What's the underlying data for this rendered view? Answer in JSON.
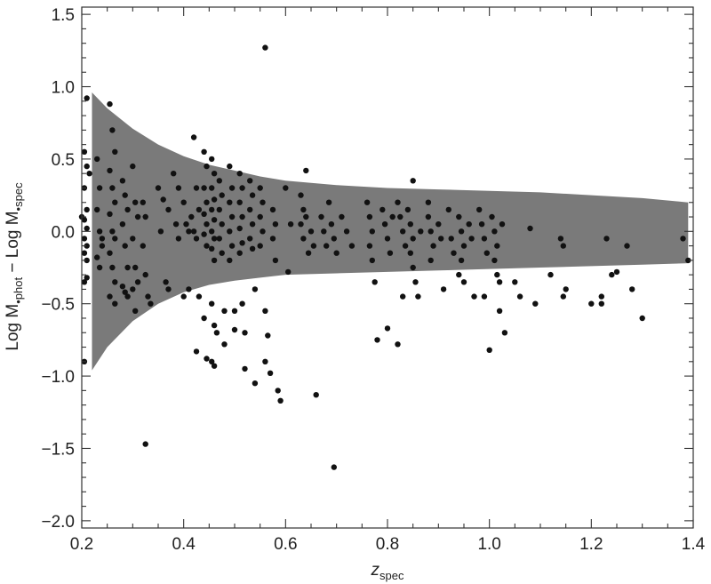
{
  "chart_data": {
    "type": "scatter",
    "title": "",
    "xlabel": {
      "main": "z",
      "sub": "spec"
    },
    "ylabel": {
      "part1": "Log M",
      "sub1": "•phot",
      "mid": " − Log M",
      "sub2": "•spec"
    },
    "xlim": [
      0.2,
      1.4
    ],
    "ylim": [
      -2.05,
      1.55
    ],
    "x_ticks": [
      0.2,
      0.4,
      0.6,
      0.8,
      1.0,
      1.2,
      1.4
    ],
    "x_tick_labels": [
      "0.2",
      "0.4",
      "0.6",
      "0.8",
      "1.0",
      "1.2",
      "1.4"
    ],
    "y_ticks": [
      -2.0,
      -1.5,
      -1.0,
      -0.5,
      0.0,
      0.5,
      1.0,
      1.5
    ],
    "y_tick_labels": [
      "−2.0",
      "−1.5",
      "−1.0",
      "−0.5",
      "0.0",
      "0.5",
      "1.0",
      "1.5"
    ],
    "grid": false,
    "legend": "none",
    "band_color": "#7a7a7a",
    "point_color": "#111111",
    "band_upper": [
      [
        0.22,
        0.96
      ],
      [
        0.25,
        0.85
      ],
      [
        0.3,
        0.71
      ],
      [
        0.35,
        0.6
      ],
      [
        0.4,
        0.52
      ],
      [
        0.45,
        0.46
      ],
      [
        0.5,
        0.42
      ],
      [
        0.55,
        0.38
      ],
      [
        0.6,
        0.35
      ],
      [
        0.7,
        0.32
      ],
      [
        0.8,
        0.3
      ],
      [
        0.9,
        0.29
      ],
      [
        1.0,
        0.28
      ],
      [
        1.1,
        0.27
      ],
      [
        1.2,
        0.25
      ],
      [
        1.3,
        0.23
      ],
      [
        1.39,
        0.2
      ]
    ],
    "band_lower": [
      [
        0.22,
        -0.96
      ],
      [
        0.25,
        -0.8
      ],
      [
        0.3,
        -0.62
      ],
      [
        0.35,
        -0.5
      ],
      [
        0.4,
        -0.42
      ],
      [
        0.45,
        -0.37
      ],
      [
        0.5,
        -0.34
      ],
      [
        0.55,
        -0.32
      ],
      [
        0.6,
        -0.3
      ],
      [
        0.7,
        -0.29
      ],
      [
        0.8,
        -0.28
      ],
      [
        0.9,
        -0.27
      ],
      [
        1.0,
        -0.26
      ],
      [
        1.1,
        -0.25
      ],
      [
        1.2,
        -0.24
      ],
      [
        1.3,
        -0.23
      ],
      [
        1.39,
        -0.22
      ]
    ],
    "points": [
      [
        0.21,
        0.92
      ],
      [
        0.205,
        0.55
      ],
      [
        0.21,
        0.45
      ],
      [
        0.215,
        0.4
      ],
      [
        0.205,
        0.3
      ],
      [
        0.21,
        0.15
      ],
      [
        0.205,
        0.08
      ],
      [
        0.21,
        0.02
      ],
      [
        0.2,
        0.1
      ],
      [
        0.205,
        -0.05
      ],
      [
        0.21,
        -0.1
      ],
      [
        0.205,
        -0.15
      ],
      [
        0.21,
        -0.2
      ],
      [
        0.205,
        -0.35
      ],
      [
        0.21,
        -0.32
      ],
      [
        0.205,
        -0.9
      ],
      [
        0.23,
        0.5
      ],
      [
        0.235,
        0.3
      ],
      [
        0.23,
        0.15
      ],
      [
        0.235,
        0.0
      ],
      [
        0.24,
        -0.05
      ],
      [
        0.23,
        -0.18
      ],
      [
        0.235,
        -0.25
      ],
      [
        0.24,
        -0.1
      ],
      [
        0.255,
        0.88
      ],
      [
        0.26,
        0.7
      ],
      [
        0.265,
        0.55
      ],
      [
        0.255,
        0.42
      ],
      [
        0.26,
        0.3
      ],
      [
        0.265,
        0.2
      ],
      [
        0.255,
        0.12
      ],
      [
        0.26,
        0.0
      ],
      [
        0.265,
        -0.05
      ],
      [
        0.255,
        -0.15
      ],
      [
        0.26,
        -0.25
      ],
      [
        0.265,
        -0.35
      ],
      [
        0.255,
        -0.45
      ],
      [
        0.265,
        -0.5
      ],
      [
        0.28,
        0.35
      ],
      [
        0.285,
        0.25
      ],
      [
        0.29,
        0.15
      ],
      [
        0.28,
        0.05
      ],
      [
        0.285,
        -0.1
      ],
      [
        0.29,
        -0.25
      ],
      [
        0.28,
        -0.38
      ],
      [
        0.285,
        -0.42
      ],
      [
        0.29,
        -0.45
      ],
      [
        0.3,
        0.45
      ],
      [
        0.305,
        0.2
      ],
      [
        0.31,
        0.1
      ],
      [
        0.3,
        -0.05
      ],
      [
        0.305,
        -0.25
      ],
      [
        0.31,
        -0.35
      ],
      [
        0.3,
        -0.4
      ],
      [
        0.305,
        -0.55
      ],
      [
        0.32,
        0.2
      ],
      [
        0.325,
        0.1
      ],
      [
        0.32,
        -0.1
      ],
      [
        0.325,
        -0.3
      ],
      [
        0.33,
        -0.45
      ],
      [
        0.335,
        -0.5
      ],
      [
        0.325,
        -1.47
      ],
      [
        0.35,
        0.3
      ],
      [
        0.36,
        0.22
      ],
      [
        0.37,
        0.15
      ],
      [
        0.355,
        0.0
      ],
      [
        0.365,
        -0.35
      ],
      [
        0.37,
        -0.4
      ],
      [
        0.38,
        0.4
      ],
      [
        0.39,
        0.3
      ],
      [
        0.385,
        0.05
      ],
      [
        0.39,
        -0.05
      ],
      [
        0.4,
        0.2
      ],
      [
        0.405,
        0.05
      ],
      [
        0.41,
        0.0
      ],
      [
        0.4,
        -0.45
      ],
      [
        0.41,
        -0.4
      ],
      [
        0.415,
        0.1
      ],
      [
        0.42,
        0.65
      ],
      [
        0.425,
        0.3
      ],
      [
        0.43,
        0.15
      ],
      [
        0.42,
        0.0
      ],
      [
        0.425,
        -0.05
      ],
      [
        0.43,
        -0.45
      ],
      [
        0.425,
        -0.83
      ],
      [
        0.44,
        0.55
      ],
      [
        0.445,
        0.45
      ],
      [
        0.44,
        0.3
      ],
      [
        0.445,
        0.2
      ],
      [
        0.44,
        0.12
      ],
      [
        0.445,
        0.05
      ],
      [
        0.44,
        -0.02
      ],
      [
        0.445,
        -0.1
      ],
      [
        0.44,
        -0.6
      ],
      [
        0.445,
        -0.88
      ],
      [
        0.455,
        0.5
      ],
      [
        0.46,
        0.4
      ],
      [
        0.455,
        0.3
      ],
      [
        0.46,
        0.22
      ],
      [
        0.455,
        0.15
      ],
      [
        0.46,
        0.08
      ],
      [
        0.455,
        0.0
      ],
      [
        0.46,
        -0.05
      ],
      [
        0.455,
        -0.12
      ],
      [
        0.46,
        -0.2
      ],
      [
        0.455,
        -0.5
      ],
      [
        0.46,
        -0.65
      ],
      [
        0.455,
        -0.9
      ],
      [
        0.46,
        -0.93
      ],
      [
        0.465,
        -0.7
      ],
      [
        0.47,
        0.35
      ],
      [
        0.475,
        0.25
      ],
      [
        0.47,
        0.15
      ],
      [
        0.475,
        0.05
      ],
      [
        0.47,
        -0.05
      ],
      [
        0.475,
        -0.15
      ],
      [
        0.48,
        -0.55
      ],
      [
        0.48,
        -0.78
      ],
      [
        0.49,
        0.45
      ],
      [
        0.495,
        0.3
      ],
      [
        0.49,
        0.2
      ],
      [
        0.495,
        0.1
      ],
      [
        0.49,
        0.0
      ],
      [
        0.495,
        -0.1
      ],
      [
        0.49,
        -0.2
      ],
      [
        0.5,
        -0.68
      ],
      [
        0.5,
        -0.55
      ],
      [
        0.51,
        0.4
      ],
      [
        0.515,
        0.3
      ],
      [
        0.51,
        0.2
      ],
      [
        0.515,
        0.1
      ],
      [
        0.51,
        0.02
      ],
      [
        0.515,
        -0.08
      ],
      [
        0.51,
        -0.15
      ],
      [
        0.515,
        -0.5
      ],
      [
        0.52,
        -0.7
      ],
      [
        0.52,
        -0.95
      ],
      [
        0.53,
        0.35
      ],
      [
        0.535,
        0.25
      ],
      [
        0.53,
        0.15
      ],
      [
        0.535,
        0.05
      ],
      [
        0.53,
        -0.05
      ],
      [
        0.535,
        -0.12
      ],
      [
        0.54,
        -0.4
      ],
      [
        0.54,
        -1.05
      ],
      [
        0.55,
        0.3
      ],
      [
        0.555,
        0.2
      ],
      [
        0.55,
        0.1
      ],
      [
        0.555,
        0.0
      ],
      [
        0.55,
        -0.1
      ],
      [
        0.56,
        -0.55
      ],
      [
        0.56,
        1.27
      ],
      [
        0.565,
        -0.72
      ],
      [
        0.56,
        -0.9
      ],
      [
        0.57,
        -0.98
      ],
      [
        0.575,
        0.15
      ],
      [
        0.58,
        0.05
      ],
      [
        0.575,
        -0.05
      ],
      [
        0.58,
        -0.2
      ],
      [
        0.585,
        -1.1
      ],
      [
        0.59,
        -1.17
      ],
      [
        0.6,
        0.3
      ],
      [
        0.61,
        0.05
      ],
      [
        0.605,
        -0.28
      ],
      [
        0.63,
        0.25
      ],
      [
        0.635,
        0.15
      ],
      [
        0.63,
        0.05
      ],
      [
        0.635,
        -0.05
      ],
      [
        0.64,
        0.42
      ],
      [
        0.64,
        0.1
      ],
      [
        0.645,
        -0.15
      ],
      [
        0.65,
        0.0
      ],
      [
        0.655,
        -0.1
      ],
      [
        0.66,
        -1.13
      ],
      [
        0.67,
        0.1
      ],
      [
        0.675,
        0.0
      ],
      [
        0.68,
        -0.1
      ],
      [
        0.685,
        0.2
      ],
      [
        0.69,
        0.05
      ],
      [
        0.695,
        -0.05
      ],
      [
        0.7,
        -0.15
      ],
      [
        0.695,
        -1.63
      ],
      [
        0.71,
        0.1
      ],
      [
        0.72,
        0.0
      ],
      [
        0.73,
        -0.1
      ],
      [
        0.76,
        0.2
      ],
      [
        0.765,
        0.1
      ],
      [
        0.77,
        0.0
      ],
      [
        0.765,
        -0.1
      ],
      [
        0.77,
        -0.2
      ],
      [
        0.775,
        -0.35
      ],
      [
        0.78,
        -0.75
      ],
      [
        0.79,
        0.15
      ],
      [
        0.795,
        0.05
      ],
      [
        0.8,
        -0.05
      ],
      [
        0.805,
        -0.15
      ],
      [
        0.8,
        -0.67
      ],
      [
        0.81,
        0.1
      ],
      [
        0.82,
        0.2
      ],
      [
        0.825,
        0.1
      ],
      [
        0.83,
        0.0
      ],
      [
        0.835,
        -0.1
      ],
      [
        0.83,
        -0.45
      ],
      [
        0.82,
        -0.78
      ],
      [
        0.84,
        0.15
      ],
      [
        0.845,
        0.05
      ],
      [
        0.85,
        -0.05
      ],
      [
        0.845,
        -0.15
      ],
      [
        0.85,
        -0.25
      ],
      [
        0.855,
        -0.35
      ],
      [
        0.85,
        0.35
      ],
      [
        0.86,
        -0.45
      ],
      [
        0.865,
        0.0
      ],
      [
        0.88,
        0.1
      ],
      [
        0.885,
        0.0
      ],
      [
        0.89,
        -0.1
      ],
      [
        0.885,
        -0.2
      ],
      [
        0.88,
        0.2
      ],
      [
        0.9,
        0.05
      ],
      [
        0.905,
        -0.05
      ],
      [
        0.91,
        -0.4
      ],
      [
        0.92,
        0.15
      ],
      [
        0.925,
        -0.05
      ],
      [
        0.93,
        -0.15
      ],
      [
        0.94,
        0.1
      ],
      [
        0.945,
        0.0
      ],
      [
        0.95,
        -0.1
      ],
      [
        0.945,
        -0.2
      ],
      [
        0.94,
        -0.3
      ],
      [
        0.95,
        -0.35
      ],
      [
        0.96,
        0.05
      ],
      [
        0.965,
        -0.05
      ],
      [
        0.97,
        -0.45
      ],
      [
        0.98,
        0.15
      ],
      [
        0.985,
        0.05
      ],
      [
        0.99,
        -0.05
      ],
      [
        0.995,
        -0.15
      ],
      [
        0.99,
        -0.45
      ],
      [
        1.0,
        -0.82
      ],
      [
        1.005,
        0.1
      ],
      [
        1.01,
        0.0
      ],
      [
        1.015,
        -0.1
      ],
      [
        1.01,
        -0.2
      ],
      [
        1.015,
        -0.3
      ],
      [
        1.02,
        -0.35
      ],
      [
        1.02,
        -0.55
      ],
      [
        1.03,
        -0.7
      ],
      [
        1.025,
        0.05
      ],
      [
        1.05,
        -0.35
      ],
      [
        1.06,
        -0.45
      ],
      [
        1.08,
        0.02
      ],
      [
        1.09,
        -0.5
      ],
      [
        1.14,
        -0.05
      ],
      [
        1.145,
        -0.1
      ],
      [
        1.15,
        -0.4
      ],
      [
        1.145,
        -0.45
      ],
      [
        1.12,
        -0.3
      ],
      [
        1.2,
        -0.5
      ],
      [
        1.22,
        -0.45
      ],
      [
        1.23,
        -0.05
      ],
      [
        1.24,
        -0.3
      ],
      [
        1.22,
        -0.5
      ],
      [
        1.25,
        -0.28
      ],
      [
        1.27,
        -0.1
      ],
      [
        1.28,
        -0.4
      ],
      [
        1.3,
        -0.6
      ],
      [
        1.38,
        -0.05
      ],
      [
        1.39,
        -0.2
      ]
    ]
  }
}
